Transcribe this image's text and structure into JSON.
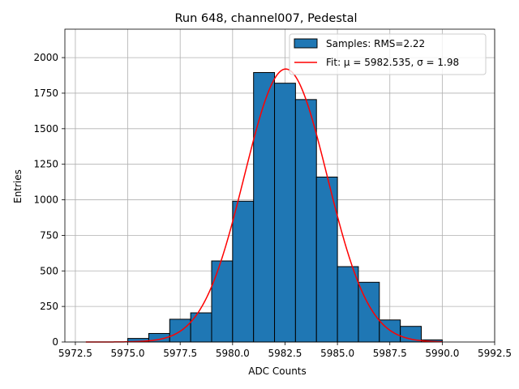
{
  "chart_data": {
    "type": "bar",
    "title": "Run 648, channel007, Pedestal",
    "xlabel": "ADC Counts",
    "ylabel": "Entries",
    "xlim": [
      5972.0,
      5992.5
    ],
    "ylim": [
      0,
      2200
    ],
    "grid": true,
    "legend_position": "top-right",
    "xticks": [
      5972.5,
      5975.0,
      5977.5,
      5980.0,
      5982.5,
      5985.0,
      5987.5,
      5990.0,
      5992.5
    ],
    "xtick_labels": [
      "5972.5",
      "5975.0",
      "5977.5",
      "5980.0",
      "5982.5",
      "5985.0",
      "5987.5",
      "5990.0",
      "5992.5"
    ],
    "yticks": [
      0,
      250,
      500,
      750,
      1000,
      1250,
      1500,
      1750,
      2000
    ],
    "ytick_labels": [
      "0",
      "250",
      "500",
      "750",
      "1000",
      "1250",
      "1500",
      "1750",
      "2000"
    ],
    "histogram": {
      "name": "Samples: RMS=2.22",
      "bin_edges": [
        5975,
        5976,
        5977,
        5978,
        5979,
        5980,
        5981,
        5982,
        5983,
        5984,
        5985,
        5986,
        5987,
        5988,
        5989,
        5990
      ],
      "counts": [
        25,
        60,
        160,
        205,
        570,
        990,
        1895,
        1820,
        1705,
        1160,
        530,
        420,
        155,
        110,
        15
      ],
      "color": "#1f77b4",
      "edgecolor": "#000000"
    },
    "fit": {
      "name": "Fit: μ = 5982.535, σ = 1.98",
      "mu": 5982.535,
      "sigma": 1.98,
      "amplitude": 1920,
      "x_range": [
        5973,
        5990
      ],
      "color": "#ff0000"
    }
  }
}
